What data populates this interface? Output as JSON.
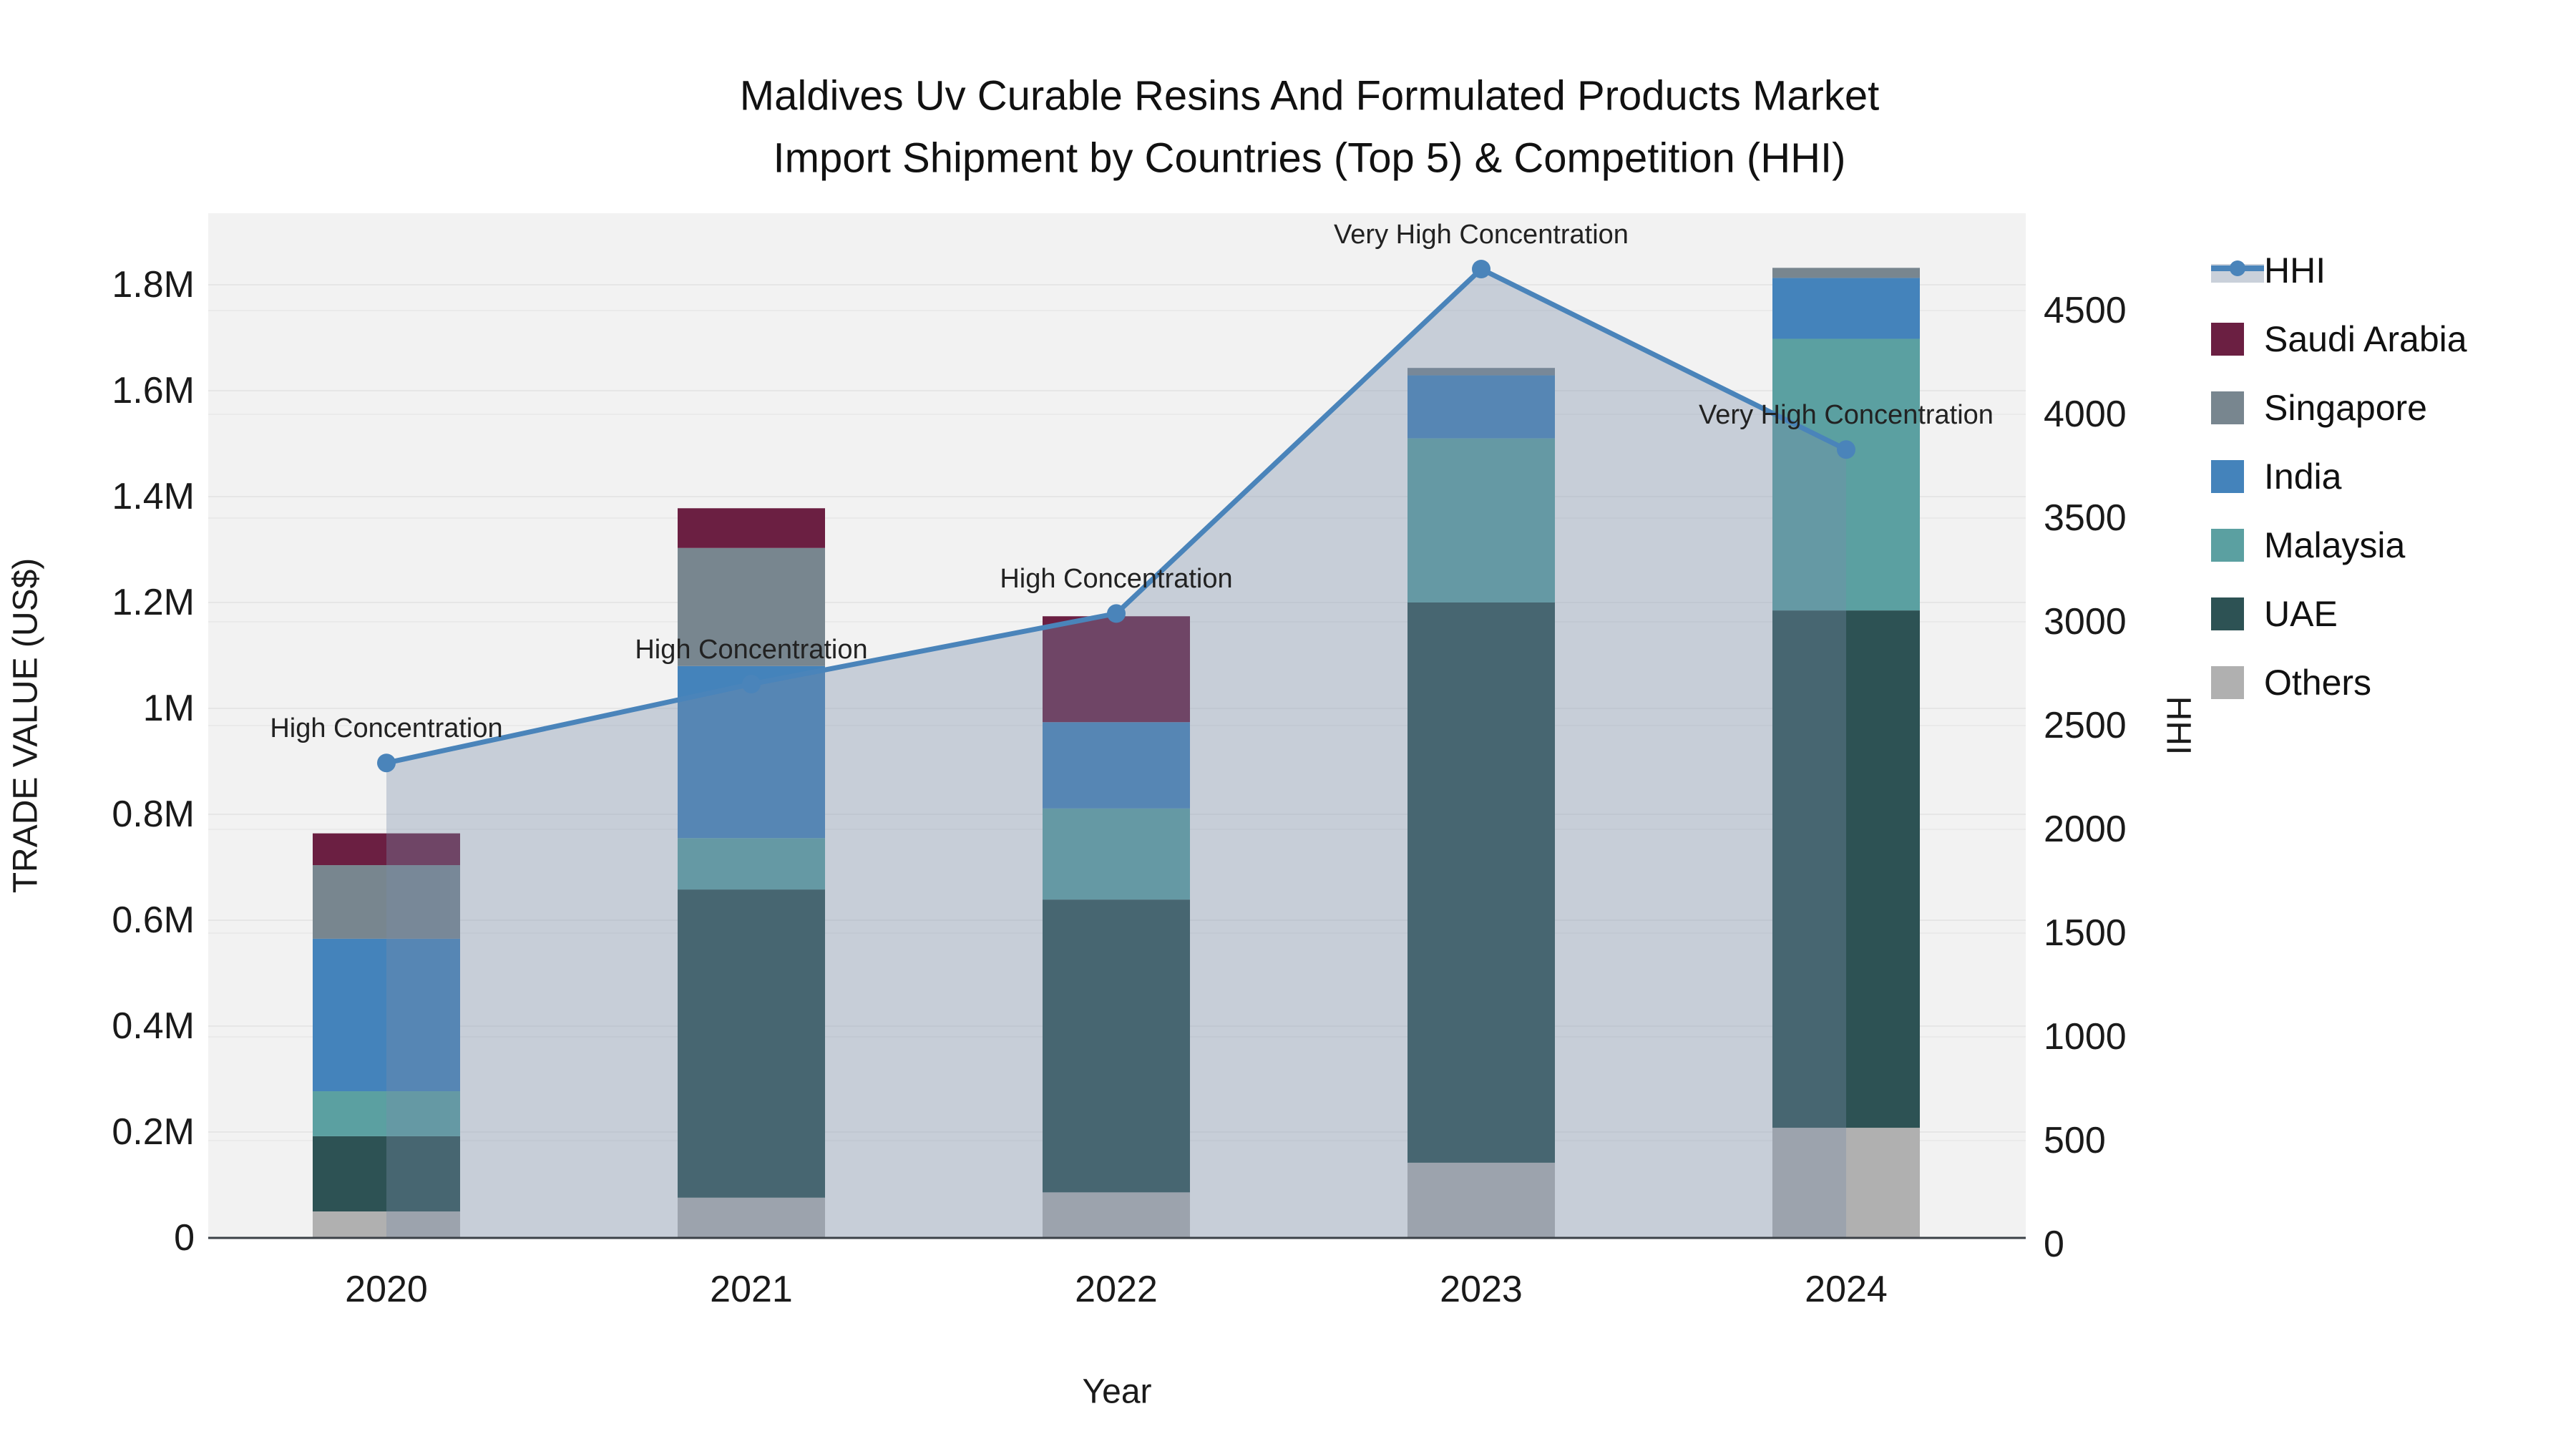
{
  "title": {
    "line1": "Maldives Uv Curable Resins And Formulated Products Market",
    "line2": "Import Shipment by Countries (Top 5) & Competition (HHI)"
  },
  "axes": {
    "x": {
      "label": "Year",
      "ticks": [
        "2020",
        "2021",
        "2022",
        "2023",
        "2024"
      ]
    },
    "y_left": {
      "label": "TRADE VALUE (US$)",
      "ticks": [
        "0",
        "0.2M",
        "0.4M",
        "0.6M",
        "0.8M",
        "1M",
        "1.2M",
        "1.4M",
        "1.6M",
        "1.8M"
      ]
    },
    "y_right": {
      "label": "HHI",
      "ticks": [
        "0",
        "500",
        "1000",
        "1500",
        "2000",
        "2500",
        "3000",
        "3500",
        "4000",
        "4500"
      ]
    }
  },
  "legend": [
    "HHI",
    "Saudi Arabia",
    "Singapore",
    "India",
    "Malaysia",
    "UAE",
    "Others"
  ],
  "annotations": [
    "High Concentration",
    "High Concentration",
    "High Concentration",
    "Very High Concentration",
    "Very High Concentration"
  ],
  "colors": {
    "hhi_line": "#4a84ba",
    "area_fill": "rgba(120,140,170,0.35)",
    "saudi_arabia": "#6b1f42",
    "singapore": "#78868f",
    "india": "#4483bb",
    "malaysia": "#5ba0a1",
    "uae": "#2d5254",
    "others": "#b0b0b0",
    "plot_bg": "#f2f2f2",
    "grid": "#e6e6e6",
    "grid2": "#eaeaea",
    "axis_line": "#3b4147"
  },
  "chart_data": {
    "type": [
      "bar-stacked",
      "line"
    ],
    "categories": [
      "2020",
      "2021",
      "2022",
      "2023",
      "2024"
    ],
    "stack_order_bottom_up": [
      "Others",
      "UAE",
      "Malaysia",
      "India",
      "Singapore",
      "Saudi Arabia"
    ],
    "series": [
      {
        "name": "Saudi Arabia",
        "values": [
          60000,
          75000,
          200000,
          0,
          0
        ]
      },
      {
        "name": "Singapore",
        "values": [
          139000,
          223000,
          0,
          14000,
          19000
        ]
      },
      {
        "name": "India",
        "values": [
          288000,
          325000,
          163000,
          119000,
          115000
        ]
      },
      {
        "name": "Malaysia",
        "values": [
          85000,
          97000,
          172000,
          310000,
          513000
        ]
      },
      {
        "name": "UAE",
        "values": [
          142000,
          582000,
          553000,
          1058000,
          977000
        ]
      },
      {
        "name": "Others",
        "values": [
          50000,
          76000,
          86000,
          142000,
          208000
        ]
      }
    ],
    "line": {
      "name": "HHI",
      "values": [
        2320,
        2700,
        3040,
        4700,
        3830
      ]
    },
    "title": "Maldives Uv Curable Resins And Formulated Products Market Import Shipment by Countries (Top 5) & Competition (HHI)",
    "xlabel": "Year",
    "ylabel_left": "TRADE VALUE (US$)",
    "ylabel_right": "HHI",
    "y_left_range": [
      0,
      1940000
    ],
    "y_right_range": [
      0,
      4960
    ],
    "grid": true,
    "legend_position": "right"
  }
}
